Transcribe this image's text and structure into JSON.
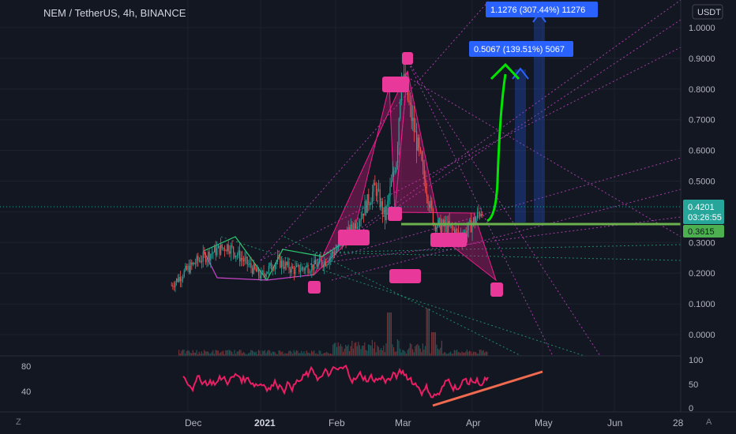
{
  "header": {
    "symbol_title": "NEM / TetherUS, 4h, BINANCE",
    "currency_badge": "USDT"
  },
  "price_axis": {
    "ticks": [
      "1.0000",
      "0.9000",
      "0.8000",
      "0.7000",
      "0.6000",
      "0.5000",
      "0.4000",
      "0.3000",
      "0.2000",
      "0.1000",
      "0.0000"
    ],
    "tick_values": [
      1.0,
      0.9,
      0.8,
      0.7,
      0.6,
      0.5,
      0.4,
      0.3,
      0.2,
      0.1,
      0.0
    ],
    "range": [
      -0.02,
      1.06
    ]
  },
  "rsi_axis": {
    "right_ticks": [
      "100",
      "50",
      "0"
    ],
    "left_ticks": [
      "80",
      "40"
    ]
  },
  "time_axis": {
    "labels": [
      "Dec",
      "2021",
      "Feb",
      "Mar",
      "Apr",
      "May",
      "Jun",
      "28"
    ]
  },
  "bottom_icons": {
    "left": "Z",
    "right": "A"
  },
  "price_labels": {
    "current": {
      "value": "0.4201",
      "countdown": "03:26:55",
      "color": "#26a69a"
    },
    "support": {
      "value": "0.3615",
      "color": "#4caf50"
    }
  },
  "measurements": [
    {
      "text": "0.5067 (139.51%) 5067",
      "color": "#2962ff"
    },
    {
      "text": "1.1276 (307.44%) 11276",
      "color": "#2962ff"
    }
  ],
  "colors": {
    "background": "#131722",
    "pattern_fill": "#e91e8c",
    "pattern_marker": "#e8389a",
    "rsi_line": "#e91e63",
    "support_line": "#6ab04c",
    "projection_arrow": "#00e600",
    "rsi_trendline": "#f06a4f"
  },
  "chart_data": {
    "type": "candlestick",
    "title": "NEM / TetherUS, 4h, BINANCE",
    "xlabel": "",
    "ylabel": "",
    "x_labels": [
      "Dec",
      "2021",
      "Feb",
      "Mar",
      "Apr",
      "May",
      "Jun",
      "28"
    ],
    "ylim": [
      -0.02,
      1.06
    ],
    "price_path": [
      {
        "date": "Nov 24",
        "price": 0.16
      },
      {
        "date": "Nov 29",
        "price": 0.2
      },
      {
        "date": "Dec 05",
        "price": 0.24
      },
      {
        "date": "Dec 12",
        "price": 0.27
      },
      {
        "date": "Dec 18",
        "price": 0.29
      },
      {
        "date": "Dec 25",
        "price": 0.24
      },
      {
        "date": "Jan 01",
        "price": 0.19
      },
      {
        "date": "Jan 08",
        "price": 0.24
      },
      {
        "date": "Jan 15",
        "price": 0.21
      },
      {
        "date": "Jan 22",
        "price": 0.22
      },
      {
        "date": "Jan 29",
        "price": 0.24
      },
      {
        "date": "Feb 05",
        "price": 0.3
      },
      {
        "date": "Feb 12",
        "price": 0.38
      },
      {
        "date": "Feb 19",
        "price": 0.48
      },
      {
        "date": "Feb 23",
        "price": 0.38
      },
      {
        "date": "Feb 28",
        "price": 0.58
      },
      {
        "date": "Mar 02",
        "price": 0.86
      },
      {
        "date": "Mar 06",
        "price": 0.72
      },
      {
        "date": "Mar 12",
        "price": 0.5
      },
      {
        "date": "Mar 16",
        "price": 0.36
      },
      {
        "date": "Mar 22",
        "price": 0.35
      },
      {
        "date": "Mar 28",
        "price": 0.32
      },
      {
        "date": "Apr 03",
        "price": 0.38
      },
      {
        "date": "Apr 06",
        "price": 0.42
      }
    ],
    "current_price": 0.4201,
    "support_level": 0.3615,
    "rsi": {
      "range": [
        0,
        100
      ],
      "trend_start": {
        "date": "Mar 15",
        "value": 12
      },
      "trend_end": {
        "date": "May 01",
        "value": 75
      }
    },
    "projection_targets": [
      {
        "label": "0.5067 (139.51%) 5067",
        "change": 0.5067
      },
      {
        "label": "1.1276 (307.44%) 11276",
        "change": 1.1276
      }
    ],
    "grid": true
  }
}
